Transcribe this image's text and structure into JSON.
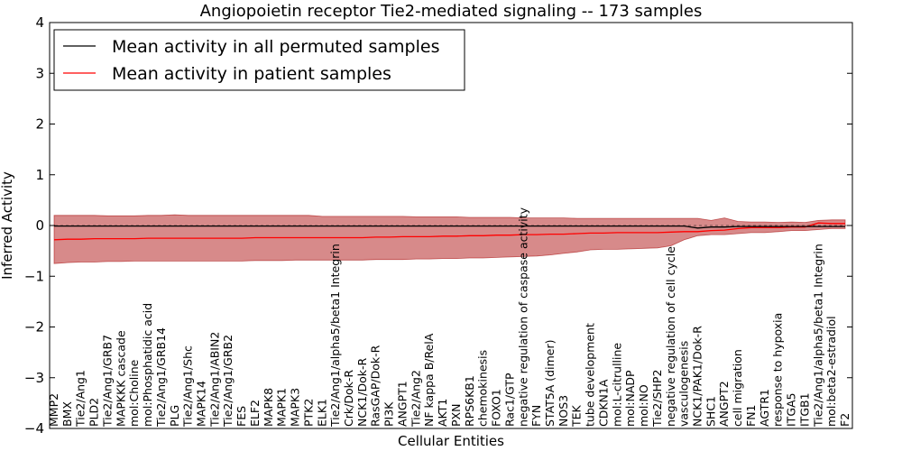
{
  "chart_data": {
    "type": "line",
    "title": "Angiopoietin receptor Tie2-mediated signaling -- 173 samples",
    "xlabel": "Cellular Entities",
    "ylabel": "Inferred Activity",
    "ylim": [
      -4,
      4
    ],
    "yticks": [
      -4,
      -3,
      -2,
      -1,
      0,
      1,
      2,
      3,
      4
    ],
    "grid": false,
    "legend_position": "top-left",
    "categories": [
      "MMP2",
      "BMX",
      "Tie2/Ang1",
      "PLD2",
      "Tie2/Ang1/GRB7",
      "MAPKKK cascade",
      "mol:Choline",
      "mol:Phosphatidic acid",
      "Tie2/Ang1/GRB14",
      "PLG",
      "Tie2/Ang1/Shc",
      "MAPK14",
      "Tie2/Ang1/ABIN2",
      "Tie2/Ang1/GRB2",
      "FES",
      "ELF2",
      "MAPK8",
      "MAPK1",
      "MAPK3",
      "PTK2",
      "ELK1",
      "Tie2/Ang1/alpha5/beta1 Integrin",
      "Crk/Dok-R",
      "NCK1/Dok-R",
      "RasGAP/Dok-R",
      "PI3K",
      "ANGPT1",
      "Tie2/Ang2",
      "NF kappa B/RelA",
      "AKT1",
      "PXN",
      "RPS6KB1",
      "chemokinesis",
      "FOXO1",
      "Rac1/GTP",
      "negative regulation of caspase activity",
      "FYN",
      "STAT5A (dimer)",
      "NOS3",
      "TEK",
      "tube development",
      "CDKN1A",
      "mol:L-citrulline",
      "mol:NADP",
      "mol:NO",
      "Tie2/SHP2",
      "negative regulation of cell cycle",
      "vasculogenesis",
      "NCK1/PAK1/Dok-R",
      "SHC1",
      "ANGPT2",
      "cell migration",
      "FN1",
      "AGTR1",
      "response to hypoxia",
      "ITGA5",
      "ITGB1",
      "Tie2/Ang1/alpha5/beta1 Integrin",
      "mol:beta2-estradiol",
      "F2"
    ],
    "series": [
      {
        "name": "Mean activity in all permuted samples",
        "color": "#000000",
        "values": [
          -0.01,
          -0.01,
          -0.01,
          -0.01,
          -0.01,
          -0.01,
          -0.01,
          -0.01,
          -0.01,
          -0.01,
          -0.01,
          -0.01,
          -0.01,
          -0.01,
          -0.01,
          -0.01,
          -0.01,
          -0.01,
          -0.01,
          -0.01,
          -0.01,
          -0.01,
          -0.01,
          -0.01,
          -0.01,
          -0.01,
          -0.01,
          -0.01,
          -0.01,
          -0.01,
          -0.01,
          -0.01,
          -0.01,
          -0.01,
          -0.01,
          -0.01,
          -0.01,
          -0.01,
          -0.01,
          -0.01,
          -0.01,
          -0.01,
          -0.01,
          -0.01,
          -0.01,
          -0.01,
          -0.01,
          -0.01,
          -0.05,
          -0.03,
          -0.03,
          -0.02,
          -0.02,
          -0.02,
          -0.02,
          -0.02,
          -0.02,
          -0.02,
          -0.02,
          -0.02
        ],
        "band_low": [
          -0.75,
          -0.73,
          -0.72,
          -0.72,
          -0.71,
          -0.71,
          -0.7,
          -0.7,
          -0.7,
          -0.7,
          -0.7,
          -0.7,
          -0.7,
          -0.7,
          -0.7,
          -0.69,
          -0.69,
          -0.69,
          -0.68,
          -0.68,
          -0.68,
          -0.68,
          -0.68,
          -0.68,
          -0.67,
          -0.67,
          -0.67,
          -0.66,
          -0.66,
          -0.65,
          -0.65,
          -0.64,
          -0.64,
          -0.63,
          -0.62,
          -0.61,
          -0.6,
          -0.58,
          -0.55,
          -0.52,
          -0.48,
          -0.47,
          -0.47,
          -0.46,
          -0.45,
          -0.44,
          -0.4,
          -0.28,
          -0.2,
          -0.18,
          -0.18,
          -0.16,
          -0.14,
          -0.14,
          -0.12,
          -0.1,
          -0.1,
          -0.08,
          -0.06,
          -0.06
        ],
        "band_high": [
          0.2,
          0.2,
          0.2,
          0.2,
          0.19,
          0.19,
          0.19,
          0.2,
          0.2,
          0.21,
          0.2,
          0.2,
          0.2,
          0.2,
          0.2,
          0.2,
          0.2,
          0.2,
          0.2,
          0.2,
          0.18,
          0.18,
          0.18,
          0.18,
          0.18,
          0.18,
          0.18,
          0.17,
          0.17,
          0.17,
          0.17,
          0.16,
          0.16,
          0.16,
          0.16,
          0.15,
          0.15,
          0.15,
          0.15,
          0.14,
          0.14,
          0.14,
          0.14,
          0.14,
          0.14,
          0.14,
          0.14,
          0.14,
          0.14,
          0.1,
          0.15,
          0.08,
          0.07,
          0.07,
          0.06,
          0.07,
          0.06,
          0.1,
          0.11,
          0.11
        ]
      },
      {
        "name": "Mean activity in patient samples",
        "color": "#ff0000",
        "values": [
          -0.28,
          -0.27,
          -0.27,
          -0.26,
          -0.26,
          -0.26,
          -0.26,
          -0.25,
          -0.25,
          -0.25,
          -0.25,
          -0.25,
          -0.25,
          -0.25,
          -0.25,
          -0.24,
          -0.24,
          -0.24,
          -0.24,
          -0.24,
          -0.24,
          -0.24,
          -0.24,
          -0.24,
          -0.23,
          -0.23,
          -0.22,
          -0.22,
          -0.22,
          -0.21,
          -0.21,
          -0.2,
          -0.2,
          -0.19,
          -0.19,
          -0.18,
          -0.18,
          -0.17,
          -0.17,
          -0.16,
          -0.15,
          -0.15,
          -0.14,
          -0.14,
          -0.14,
          -0.14,
          -0.13,
          -0.12,
          -0.12,
          -0.1,
          -0.09,
          -0.06,
          -0.04,
          -0.04,
          -0.04,
          -0.03,
          -0.03,
          0.05,
          0.04,
          0.04
        ],
        "band_low": [
          -0.75,
          -0.73,
          -0.72,
          -0.72,
          -0.71,
          -0.71,
          -0.7,
          -0.7,
          -0.7,
          -0.7,
          -0.7,
          -0.7,
          -0.7,
          -0.7,
          -0.7,
          -0.69,
          -0.69,
          -0.69,
          -0.68,
          -0.68,
          -0.68,
          -0.68,
          -0.68,
          -0.68,
          -0.67,
          -0.67,
          -0.67,
          -0.66,
          -0.66,
          -0.65,
          -0.65,
          -0.64,
          -0.64,
          -0.63,
          -0.62,
          -0.61,
          -0.6,
          -0.58,
          -0.55,
          -0.52,
          -0.48,
          -0.47,
          -0.47,
          -0.46,
          -0.45,
          -0.44,
          -0.4,
          -0.28,
          -0.2,
          -0.18,
          -0.18,
          -0.16,
          -0.14,
          -0.14,
          -0.12,
          -0.1,
          -0.1,
          -0.08,
          -0.06,
          -0.06
        ],
        "band_high": [
          0.2,
          0.2,
          0.2,
          0.2,
          0.19,
          0.19,
          0.19,
          0.2,
          0.2,
          0.21,
          0.2,
          0.2,
          0.2,
          0.2,
          0.2,
          0.2,
          0.2,
          0.2,
          0.2,
          0.2,
          0.18,
          0.18,
          0.18,
          0.18,
          0.18,
          0.18,
          0.18,
          0.17,
          0.17,
          0.17,
          0.17,
          0.16,
          0.16,
          0.16,
          0.16,
          0.15,
          0.15,
          0.15,
          0.15,
          0.14,
          0.14,
          0.14,
          0.14,
          0.14,
          0.14,
          0.14,
          0.14,
          0.14,
          0.14,
          0.1,
          0.15,
          0.08,
          0.07,
          0.07,
          0.06,
          0.07,
          0.06,
          0.1,
          0.11,
          0.11
        ]
      }
    ]
  }
}
